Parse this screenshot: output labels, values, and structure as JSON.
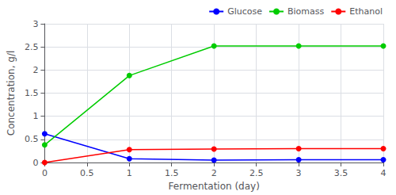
{
  "chart_data": {
    "type": "line",
    "xlabel": "Fermentation (day)",
    "ylabel": "Concentration, g/l",
    "x": [
      0,
      1,
      2,
      3,
      4
    ],
    "series": [
      {
        "name": "Glucose",
        "color": "#0000ff",
        "marker": "circle",
        "values": [
          0.62,
          0.08,
          0.05,
          0.06,
          0.06
        ]
      },
      {
        "name": "Biomass",
        "color": "#00cc00",
        "marker": "circle",
        "values": [
          0.38,
          1.88,
          2.52,
          2.52,
          2.52
        ]
      },
      {
        "name": "Ethanol",
        "color": "#ff0000",
        "marker": "circle",
        "values": [
          0.0,
          0.28,
          0.29,
          0.3,
          0.3
        ]
      }
    ],
    "xlim": [
      0,
      4
    ],
    "ylim": [
      0,
      3
    ],
    "xticks": [
      0,
      0.5,
      1,
      1.5,
      2,
      2.5,
      3,
      3.5,
      4
    ],
    "yticks": [
      0,
      0.5,
      1,
      1.5,
      2,
      2.5,
      3
    ],
    "grid": true,
    "legend": "upper right"
  }
}
